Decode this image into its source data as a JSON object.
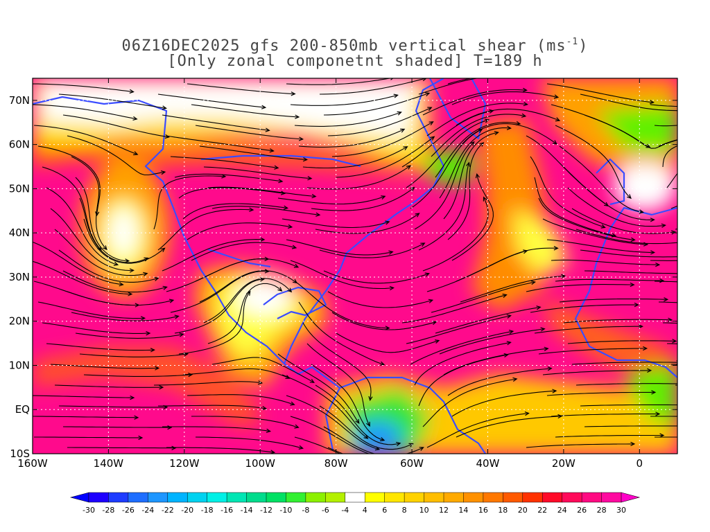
{
  "title": {
    "line1_prefix": "06Z16DEC2025 gfs 200-850mb vertical shear (ms",
    "line1_sup": "-1",
    "line1_suffix": ")",
    "line2": "[Only zonal componetnt shaded] T=189 h"
  },
  "map": {
    "lon_range": [
      -160,
      10
    ],
    "lat_range": [
      -10,
      75
    ],
    "lon_ticks": [
      {
        "value": -160,
        "label": "160W"
      },
      {
        "value": -140,
        "label": "140W"
      },
      {
        "value": -120,
        "label": "120W"
      },
      {
        "value": -100,
        "label": "100W"
      },
      {
        "value": -80,
        "label": "80W"
      },
      {
        "value": -60,
        "label": "60W"
      },
      {
        "value": -40,
        "label": "40W"
      },
      {
        "value": -20,
        "label": "20W"
      },
      {
        "value": 0,
        "label": "0"
      }
    ],
    "lat_ticks": [
      {
        "value": 70,
        "label": "70N"
      },
      {
        "value": 60,
        "label": "60N"
      },
      {
        "value": 50,
        "label": "50N"
      },
      {
        "value": 40,
        "label": "40N"
      },
      {
        "value": 30,
        "label": "30N"
      },
      {
        "value": 20,
        "label": "20N"
      },
      {
        "value": 10,
        "label": "10N"
      },
      {
        "value": 0,
        "label": "EQ"
      },
      {
        "value": -10,
        "label": "10S"
      }
    ],
    "coastline_color": "#3a4cff",
    "streamline_color": "#000000"
  },
  "colorbar": {
    "labels": [
      "-30",
      "-28",
      "-26",
      "-24",
      "-22",
      "-20",
      "-18",
      "-16",
      "-14",
      "-12",
      "-10",
      "-8",
      "-6",
      "-4",
      "4",
      "6",
      "8",
      "10",
      "12",
      "14",
      "16",
      "18",
      "20",
      "22",
      "24",
      "26",
      "28",
      "30"
    ],
    "colors": [
      "#1e00ff",
      "#1e3cff",
      "#1e6eff",
      "#1e96ff",
      "#00b4ff",
      "#00d2f0",
      "#00f0e6",
      "#00e6b4",
      "#00dc8c",
      "#00e164",
      "#32f032",
      "#8cf000",
      "#b4f000",
      "#ffffff",
      "#ffff00",
      "#ffe600",
      "#ffd200",
      "#ffbe00",
      "#ffaa00",
      "#ff9100",
      "#ff7800",
      "#ff5a00",
      "#ff3200",
      "#ff0a28",
      "#ff0a5a",
      "#ff0a82",
      "#ff0aa0"
    ],
    "end_low": "#0000ff",
    "end_high": "#ff00c8"
  }
}
